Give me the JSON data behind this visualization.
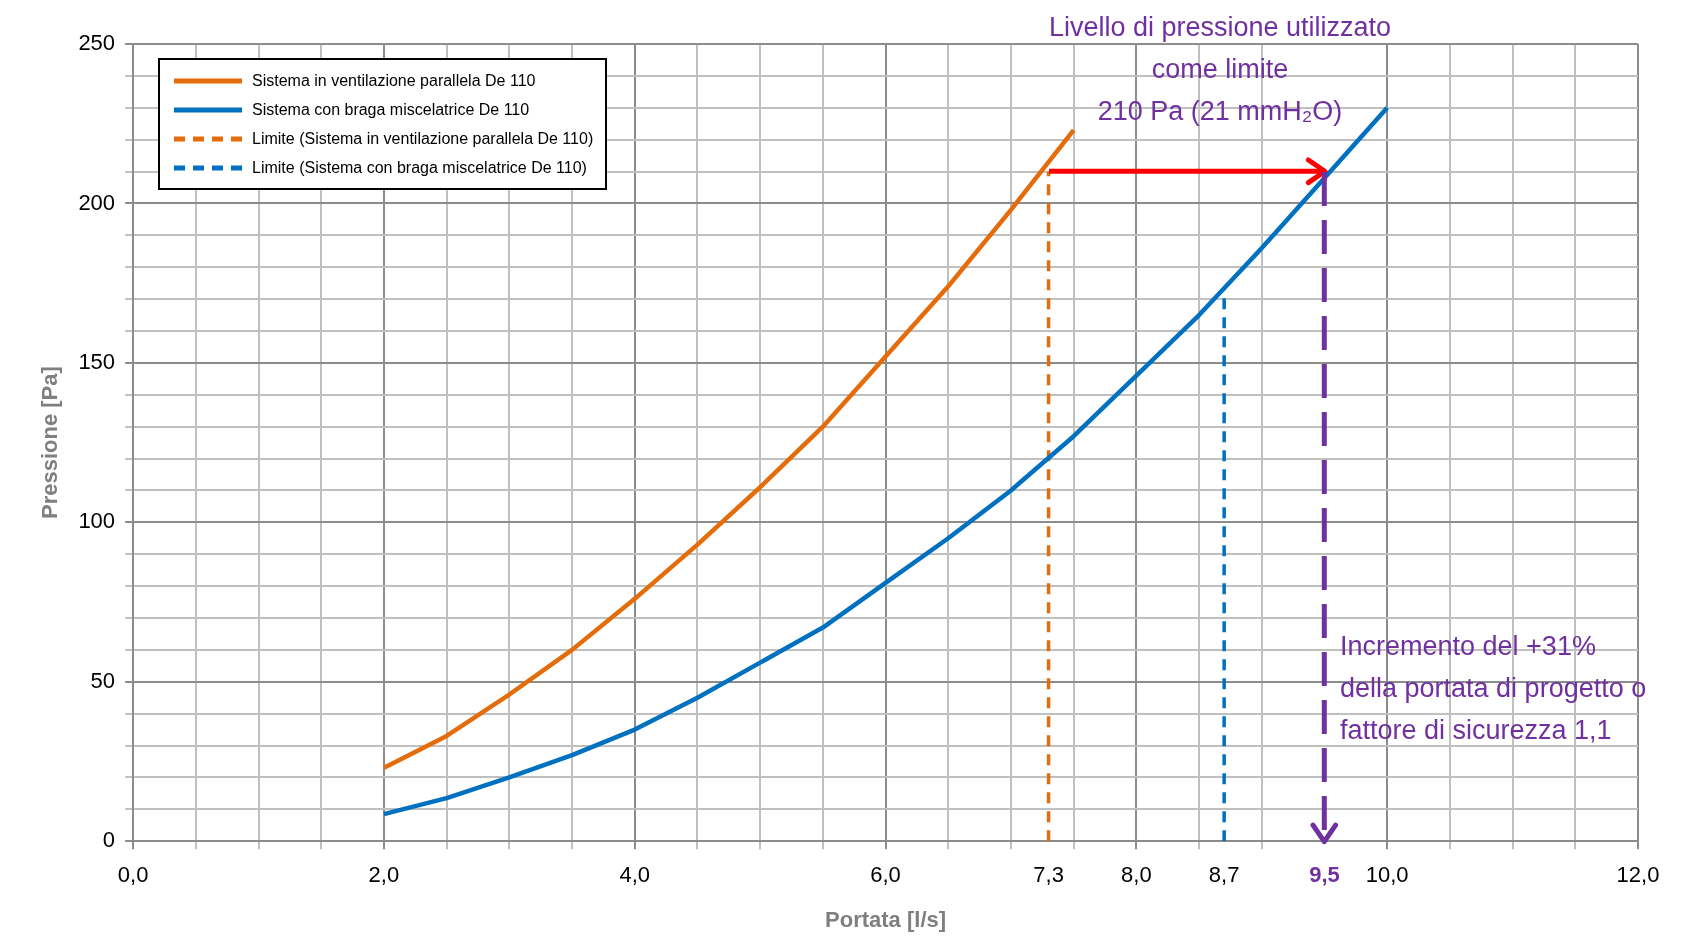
{
  "chart_data": {
    "type": "line",
    "xlabel": "Portata [l/s]",
    "ylabel": "Pressione [Pa]",
    "xlim": [
      0,
      12
    ],
    "ylim": [
      0,
      250
    ],
    "xticks": [
      {
        "value": 0,
        "label": "0,0"
      },
      {
        "value": 0.5,
        "label": null
      },
      {
        "value": 1,
        "label": null
      },
      {
        "value": 1.5,
        "label": null
      },
      {
        "value": 2,
        "label": "2,0"
      },
      {
        "value": 2.5,
        "label": null
      },
      {
        "value": 3,
        "label": null
      },
      {
        "value": 3.5,
        "label": null
      },
      {
        "value": 4,
        "label": "4,0"
      },
      {
        "value": 4.5,
        "label": null
      },
      {
        "value": 5,
        "label": null
      },
      {
        "value": 5.5,
        "label": null
      },
      {
        "value": 6,
        "label": "6,0"
      },
      {
        "value": 6.5,
        "label": null
      },
      {
        "value": 7,
        "label": null
      },
      {
        "value": 7.3,
        "label": "7,3"
      },
      {
        "value": 7.5,
        "label": null
      },
      {
        "value": 8,
        "label": "8,0"
      },
      {
        "value": 8.5,
        "label": null
      },
      {
        "value": 8.7,
        "label": "8,7"
      },
      {
        "value": 9,
        "label": null
      },
      {
        "value": 9.5,
        "label": "9,5"
      },
      {
        "value": 10,
        "label": "10,0"
      },
      {
        "value": 10.5,
        "label": null
      },
      {
        "value": 11,
        "label": null
      },
      {
        "value": 11.5,
        "label": null
      },
      {
        "value": 12,
        "label": "12,0"
      }
    ],
    "yticks": [
      0,
      {
        "value": 10,
        "label": null
      },
      {
        "value": 20,
        "label": null
      },
      {
        "value": 30,
        "label": null
      },
      {
        "value": 40,
        "label": null
      },
      50,
      {
        "value": 60,
        "label": null
      },
      {
        "value": 70,
        "label": null
      },
      {
        "value": 80,
        "label": null
      },
      {
        "value": 90,
        "label": null
      },
      100,
      {
        "value": 110,
        "label": null
      },
      {
        "value": 120,
        "label": null
      },
      {
        "value": 130,
        "label": null
      },
      {
        "value": 140,
        "label": null
      },
      150,
      {
        "value": 160,
        "label": null
      },
      {
        "value": 170,
        "label": null
      },
      {
        "value": 180,
        "label": null
      },
      {
        "value": 190,
        "label": null
      },
      200,
      {
        "value": 210,
        "label": null
      },
      {
        "value": 220,
        "label": null
      },
      {
        "value": 230,
        "label": null
      },
      {
        "value": 240,
        "label": null
      },
      250
    ],
    "grid": true,
    "legend": "top left",
    "marker": "none",
    "series": [
      {
        "name": "Sistema in ventilazione parallela De 110",
        "color": "#e46c0a",
        "line_style": "solid",
        "x": [
          2,
          2.5,
          3,
          3.5,
          4,
          4.5,
          5,
          5.5,
          6,
          6.5,
          7,
          7.5
        ],
        "values": [
          23,
          33,
          46,
          60,
          76,
          93,
          111,
          130,
          152,
          174,
          198,
          223
        ]
      },
      {
        "name": "Sistema con braga miscelatrice De 110",
        "color": "#0070c0",
        "line_style": "solid",
        "x": [
          2,
          2.5,
          3,
          3.5,
          4,
          4.5,
          5,
          5.5,
          6,
          6.5,
          7,
          7.5,
          8,
          8.5,
          9,
          9.5,
          10
        ],
        "values": [
          8.5,
          13.5,
          20,
          27,
          35,
          45,
          56,
          67,
          81,
          95,
          110,
          127,
          146,
          165,
          186,
          208,
          230
        ]
      },
      {
        "name": "Limite (Sistema in ventilazione parallela De 110)",
        "color": "#e46c0a",
        "line_style": "dashed",
        "x": [
          7.3,
          7.3
        ],
        "values": [
          0,
          210
        ]
      },
      {
        "name": "Limite (Sistema con braga miscelatrice De 110)",
        "color": "#0070c0",
        "line_style": "dashed",
        "x": [
          8.7,
          8.7
        ],
        "values": [
          0,
          173
        ]
      }
    ],
    "ref_lines": [
      {
        "axis": "y",
        "value": 210,
        "color": "#ff0000",
        "line_style": "solid"
      },
      {
        "axis": "x",
        "value": 9.5,
        "color": "#7030a0",
        "line_style": "dashed"
      }
    ],
    "annotations": [
      "Livello di pressione utilizzato\ncome limite\n210 Pa (21 mmH₂O)",
      "Incremento del +31%\ndella portata di progetto o\nfattore di sicurezza 1,1"
    ]
  }
}
